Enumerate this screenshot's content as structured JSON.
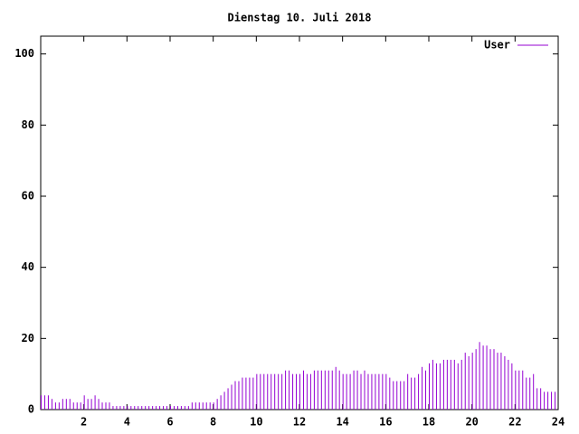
{
  "chart_data": {
    "type": "impulse",
    "title": "Dienstag 10. Juli 2018",
    "series": [
      {
        "name": "User",
        "color": "#9400d3",
        "x": [
          0,
          0.167,
          0.333,
          0.5,
          0.667,
          0.833,
          1,
          1.167,
          1.333,
          1.5,
          1.667,
          1.833,
          2,
          2.167,
          2.333,
          2.5,
          2.667,
          2.833,
          3,
          3.167,
          3.333,
          3.5,
          3.667,
          3.833,
          4,
          4.167,
          4.333,
          4.5,
          4.667,
          4.833,
          5,
          5.167,
          5.333,
          5.5,
          5.667,
          5.833,
          6,
          6.167,
          6.333,
          6.5,
          6.667,
          6.833,
          7,
          7.167,
          7.333,
          7.5,
          7.667,
          7.833,
          8,
          8.167,
          8.333,
          8.5,
          8.667,
          8.833,
          9,
          9.167,
          9.333,
          9.5,
          9.667,
          9.833,
          10,
          10.167,
          10.333,
          10.5,
          10.667,
          10.833,
          11,
          11.167,
          11.333,
          11.5,
          11.667,
          11.833,
          12,
          12.167,
          12.333,
          12.5,
          12.667,
          12.833,
          13,
          13.167,
          13.333,
          13.5,
          13.667,
          13.833,
          14,
          14.167,
          14.333,
          14.5,
          14.667,
          14.833,
          15,
          15.167,
          15.333,
          15.5,
          15.667,
          15.833,
          16,
          16.167,
          16.333,
          16.5,
          16.667,
          16.833,
          17,
          17.167,
          17.333,
          17.5,
          17.667,
          17.833,
          18,
          18.167,
          18.333,
          18.5,
          18.667,
          18.833,
          19,
          19.167,
          19.333,
          19.5,
          19.667,
          19.833,
          20,
          20.167,
          20.333,
          20.5,
          20.667,
          20.833,
          21,
          21.167,
          21.333,
          21.5,
          21.667,
          21.833,
          22,
          22.167,
          22.333,
          22.5,
          22.667,
          22.833,
          23,
          23.167,
          23.333,
          23.5,
          23.667,
          23.833
        ],
        "values": [
          4,
          4,
          4,
          3,
          2,
          2,
          3,
          3,
          3,
          2,
          2,
          2,
          4,
          3,
          3,
          4,
          3,
          2,
          2,
          2,
          1,
          1,
          1,
          1,
          1,
          1,
          1,
          1,
          1,
          1,
          1,
          1,
          1,
          1,
          1,
          1,
          1,
          1,
          1,
          1,
          1,
          1,
          2,
          2,
          2,
          2,
          2,
          2,
          2,
          3,
          4,
          5,
          6,
          7,
          8,
          8,
          9,
          9,
          9,
          9,
          10,
          10,
          10,
          10,
          10,
          10,
          10,
          10,
          11,
          11,
          10,
          10,
          10,
          11,
          10,
          10,
          11,
          11,
          11,
          11,
          11,
          11,
          12,
          11,
          10,
          10,
          10,
          11,
          11,
          10,
          11,
          10,
          10,
          10,
          10,
          10,
          10,
          9,
          8,
          8,
          8,
          8,
          10,
          9,
          9,
          10,
          12,
          11,
          13,
          14,
          13,
          13,
          14,
          14,
          14,
          14,
          13,
          14,
          16,
          15,
          16,
          17,
          19,
          18,
          18,
          17,
          17,
          16,
          16,
          15,
          14,
          13,
          11,
          11,
          11,
          9,
          9,
          10,
          6,
          6,
          5,
          5,
          5,
          5
        ]
      }
    ],
    "xlim": [
      0,
      24
    ],
    "xticks": [
      2,
      4,
      6,
      8,
      10,
      12,
      14,
      16,
      18,
      20,
      22,
      24
    ],
    "ylim": [
      0,
      105
    ],
    "yticks": [
      0,
      20,
      40,
      60,
      80,
      100
    ],
    "legend": "top-right"
  }
}
